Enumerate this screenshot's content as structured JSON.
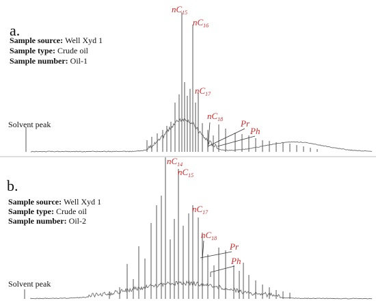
{
  "chart_data": [
    {
      "type": "line",
      "panel_label": "a.",
      "sample_info": [
        {
          "key": "Sample source:",
          "value": "Well Xyd 1"
        },
        {
          "key": "Sample type:",
          "value": "Crude oil"
        },
        {
          "key": "Sample number:",
          "value": "Oil-1"
        }
      ],
      "solvent_label": "Solvent peak",
      "peaks": [
        {
          "name": "nC15",
          "base": "nC",
          "sub": "15"
        },
        {
          "name": "nC16",
          "base": "nC",
          "sub": "16"
        },
        {
          "name": "nC17",
          "base": "nC",
          "sub": "17"
        },
        {
          "name": "nC18",
          "base": "nC",
          "sub": "18"
        },
        {
          "name": "Pr",
          "base": "Pr",
          "sub": ""
        },
        {
          "name": "Ph",
          "base": "Ph",
          "sub": ""
        }
      ]
    },
    {
      "type": "line",
      "panel_label": "b.",
      "sample_info": [
        {
          "key": "Sample source:",
          "value": "Well Xyd 1"
        },
        {
          "key": "Sample type:",
          "value": "Crude oil"
        },
        {
          "key": "Sample number:",
          "value": "Oil-2"
        }
      ],
      "solvent_label": "Solvent peak",
      "peaks": [
        {
          "name": "nC14",
          "base": "nC",
          "sub": "14"
        },
        {
          "name": "nC15",
          "base": "nC",
          "sub": "15"
        },
        {
          "name": "nC17",
          "base": "nC",
          "sub": "17"
        },
        {
          "name": "nC18",
          "base": "nC",
          "sub": "18"
        },
        {
          "name": "Pr",
          "base": "Pr",
          "sub": ""
        },
        {
          "name": "Ph",
          "base": "Ph",
          "sub": ""
        }
      ]
    }
  ]
}
